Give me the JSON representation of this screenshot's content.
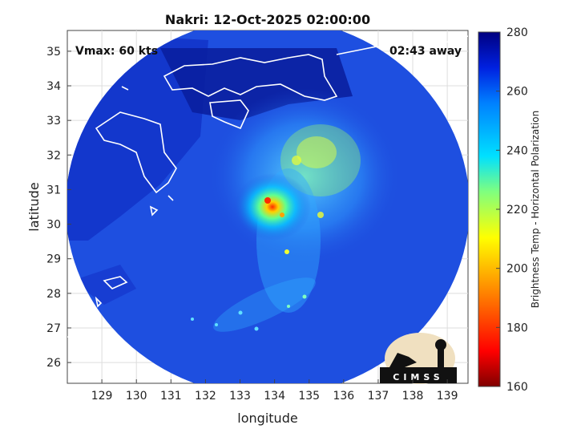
{
  "title": "Nakri: 12-Oct-2025 02:00:00",
  "annotations": {
    "vmax": "Vmax: 60 kts",
    "time_away": "02:43 away"
  },
  "xlabel": "longitude",
  "ylabel": "latitude",
  "x_ticks": [
    "129",
    "130",
    "131",
    "132",
    "133",
    "134",
    "135",
    "136",
    "137",
    "138",
    "139"
  ],
  "y_ticks": [
    "35",
    "34",
    "33",
    "32",
    "31",
    "30",
    "29",
    "28",
    "27",
    "26"
  ],
  "xlim": [
    128.0,
    139.6
  ],
  "ylim": [
    25.4,
    35.6
  ],
  "colorbar": {
    "label": "Brightness Temp - Horizontal Polarization",
    "ticks": [
      "280",
      "260",
      "240",
      "220",
      "200",
      "180",
      "160"
    ],
    "range": [
      160,
      280
    ]
  },
  "logo_text": "CIMSS",
  "storm_center": {
    "lon": 133.9,
    "lat": 30.5
  },
  "colors": {
    "background_ocean": "#1e4fe0",
    "deep_land": "#0a1fa0",
    "cold_core": "#ff2a00"
  }
}
